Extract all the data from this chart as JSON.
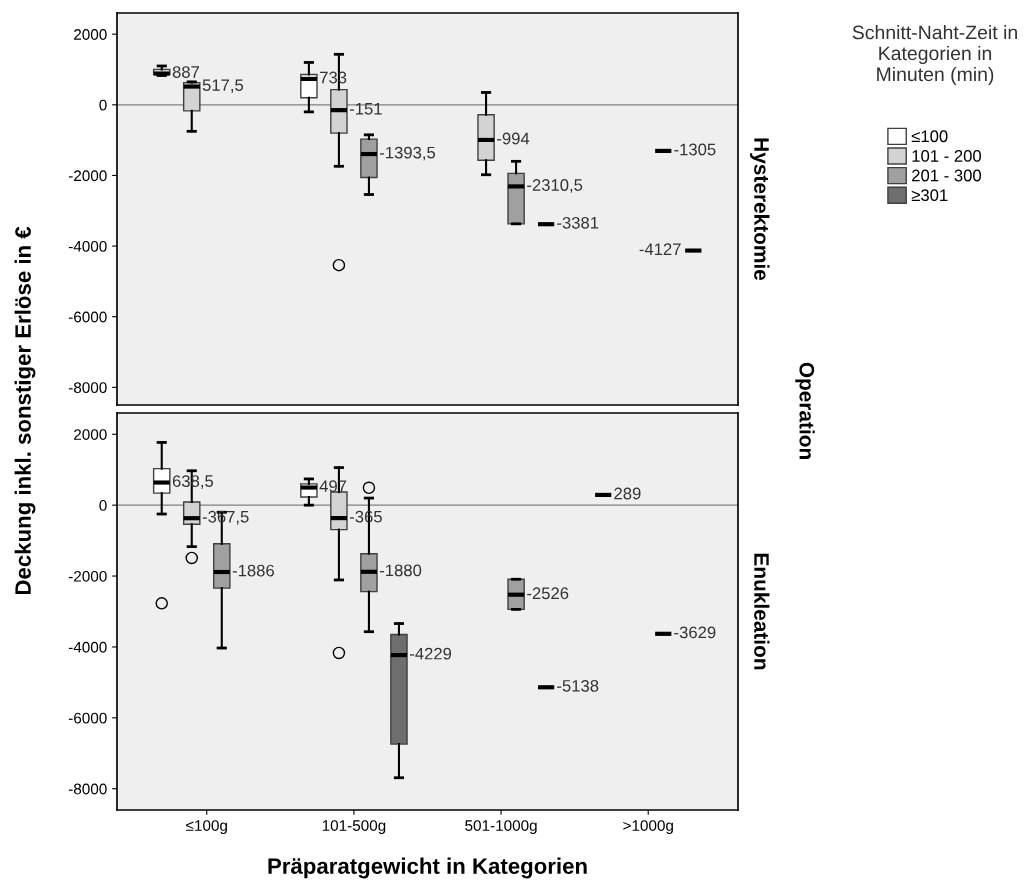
{
  "chart_data": [
    {
      "type": "box",
      "annotations": [
        "Hysterektomie"
      ],
      "legend_title": "Schnitt-Naht-Zeit in Kategorien in Minuten (min)",
      "legend": "right",
      "tick_labels": "y",
      "grid": false,
      "ylim": [
        -8500,
        2600
      ],
      "yticks": [
        -8000,
        -6000,
        -4000,
        -2000,
        0,
        2000
      ],
      "ref_lines": [
        {
          "axis": "y",
          "value": 0,
          "color": "#808080"
        }
      ],
      "series": [
        {
          "name": "≤100",
          "color": "#ffffff",
          "boxes": [
            {
              "low": 830,
              "q1": 860,
              "median": 887,
              "q3": 1000,
              "high": 1100
            },
            {
              "low": -200,
              "q1": 200,
              "median": 733,
              "q3": 860,
              "high": 1200
            },
            null,
            null
          ],
          "value_labels": [
            "887",
            "733",
            null,
            null
          ]
        },
        {
          "name": "101 - 200",
          "color": "#d3d3d3",
          "boxes": [
            {
              "low": -750,
              "q1": -170,
              "median": 517.5,
              "q3": 630,
              "high": 650
            },
            {
              "low": -1740,
              "q1": -800,
              "median": -151,
              "q3": 430,
              "high": 1430,
              "outliers": [
                -4540
              ]
            },
            {
              "low": -1980,
              "q1": -1570,
              "median": -994,
              "q3": -280,
              "high": 350
            },
            null
          ],
          "value_labels": [
            "517,5",
            "-151",
            "-994",
            null
          ]
        },
        {
          "name": "201 - 300",
          "color": "#a0a0a0",
          "boxes": [
            null,
            {
              "low": -2540,
              "q1": -2060,
              "median": -1393.5,
              "q3": -970,
              "high": -850
            },
            {
              "low": -3370,
              "q1": -3370,
              "median": -2310.5,
              "q3": -1940,
              "high": -1600
            },
            {
              "low": -1305,
              "q1": -1305,
              "median": -1305,
              "q3": -1305,
              "high": -1305
            }
          ],
          "value_labels": [
            null,
            "-1393,5",
            "-2310,5",
            "-1305"
          ]
        },
        {
          "name": "≥301",
          "color": "#6e6e6e",
          "boxes": [
            null,
            null,
            {
              "low": -3381,
              "q1": -3381,
              "median": -3381,
              "q3": -3381,
              "high": -3381
            },
            {
              "low": -4127,
              "q1": -4127,
              "median": -4127,
              "q3": -4127,
              "high": -4127
            }
          ],
          "value_labels": [
            null,
            null,
            "-3381",
            "-4127"
          ]
        }
      ]
    },
    {
      "type": "box",
      "xlabel": "Präparatgewicht in Kategorien",
      "ylabel": "Deckung inkl. sonstiger Erlöse in €",
      "annotations": [
        "Enukleation",
        "Operation"
      ],
      "grid": false,
      "categories": [
        "≤100g",
        "101-500g",
        "501-1000g",
        ">1000g"
      ],
      "ylim": [
        -8600,
        2600
      ],
      "yticks": [
        -8000,
        -6000,
        -4000,
        -2000,
        0,
        2000
      ],
      "ref_lines": [
        {
          "axis": "y",
          "value": 0,
          "color": "#808080"
        }
      ],
      "series": [
        {
          "color": "#ffffff",
          "boxes": [
            {
              "low": -250,
              "q1": 340,
              "median": 638.5,
              "q3": 1030,
              "high": 1770,
              "outliers": [
                -2770
              ]
            },
            {
              "low": 0,
              "q1": 230,
              "median": 497,
              "q3": 600,
              "high": 740
            },
            null,
            {
              "low": 289,
              "q1": 289,
              "median": 289,
              "q3": 289,
              "high": 289
            }
          ],
          "value_labels": [
            "638,5",
            "497",
            null,
            "289"
          ]
        },
        {
          "color": "#d3d3d3",
          "boxes": [
            {
              "low": -1170,
              "q1": -540,
              "median": -367.5,
              "q3": 90,
              "high": 970,
              "outliers": [
                -1490
              ]
            },
            {
              "low": -2110,
              "q1": -690,
              "median": -365,
              "q3": 370,
              "high": 1060,
              "outliers": [
                -4170
              ]
            },
            null,
            null
          ],
          "value_labels": [
            "-367,5",
            "-365",
            null,
            null
          ]
        },
        {
          "color": "#a0a0a0",
          "boxes": [
            {
              "low": -4030,
              "q1": -2340,
              "median": -1886,
              "q3": -1090,
              "high": -200
            },
            {
              "low": -3570,
              "q1": -2440,
              "median": -1880,
              "q3": -1370,
              "high": 200,
              "outliers": [
                490
              ]
            },
            {
              "low": -2940,
              "q1": -2940,
              "median": -2526,
              "q3": -2090,
              "high": -2090
            },
            {
              "low": -3629,
              "q1": -3629,
              "median": -3629,
              "q3": -3629,
              "high": -3629
            }
          ],
          "value_labels": [
            "-1886",
            "-1880",
            "-2526",
            "-3629"
          ]
        },
        {
          "color": "#6e6e6e",
          "boxes": [
            null,
            {
              "low": -7690,
              "q1": -6740,
              "median": -4229,
              "q3": -3650,
              "high": -3340
            },
            {
              "low": -5138,
              "q1": -5138,
              "median": -5138,
              "q3": -5138,
              "high": -5138
            },
            null
          ],
          "value_labels": [
            null,
            "-4229",
            "-5138",
            null
          ]
        }
      ]
    }
  ]
}
